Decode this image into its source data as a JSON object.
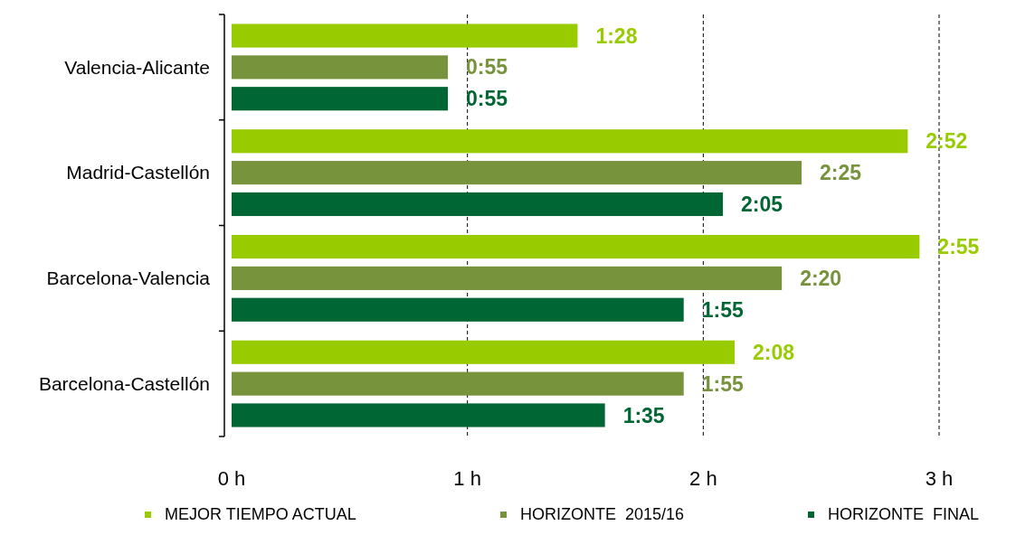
{
  "chart_data": {
    "type": "bar",
    "orientation": "horizontal",
    "categories": [
      "Valencia-Alicante",
      "Madrid-Castellón",
      "Barcelona-Valencia",
      "Barcelona-Castellón"
    ],
    "series": [
      {
        "name": "MEJOR TIEMPO ACTUAL",
        "color": "#99cc00",
        "values": [
          1.467,
          2.867,
          2.917,
          2.133
        ],
        "value_labels": [
          "1:28",
          "2:52",
          "2:55",
          "2:08"
        ]
      },
      {
        "name": "HORIZONTE  2015/16",
        "color": "#77933c",
        "values": [
          0.917,
          2.417,
          2.333,
          1.917
        ],
        "value_labels": [
          "0:55",
          "2:25",
          "2:20",
          "1:55"
        ]
      },
      {
        "name": "HORIZONTE  FINAL",
        "color": "#006633",
        "values": [
          0.917,
          2.083,
          1.917,
          1.583
        ],
        "value_labels": [
          "0:55",
          "2:05",
          "1:55",
          "1:35"
        ]
      }
    ],
    "xlim": [
      0,
      3
    ],
    "xticks": [
      {
        "value": 0,
        "label": "0 h"
      },
      {
        "value": 1,
        "label": "1 h"
      },
      {
        "value": 2,
        "label": "2 h"
      },
      {
        "value": 3,
        "label": "3 h"
      }
    ],
    "grid": "x",
    "legend": "bottom"
  }
}
